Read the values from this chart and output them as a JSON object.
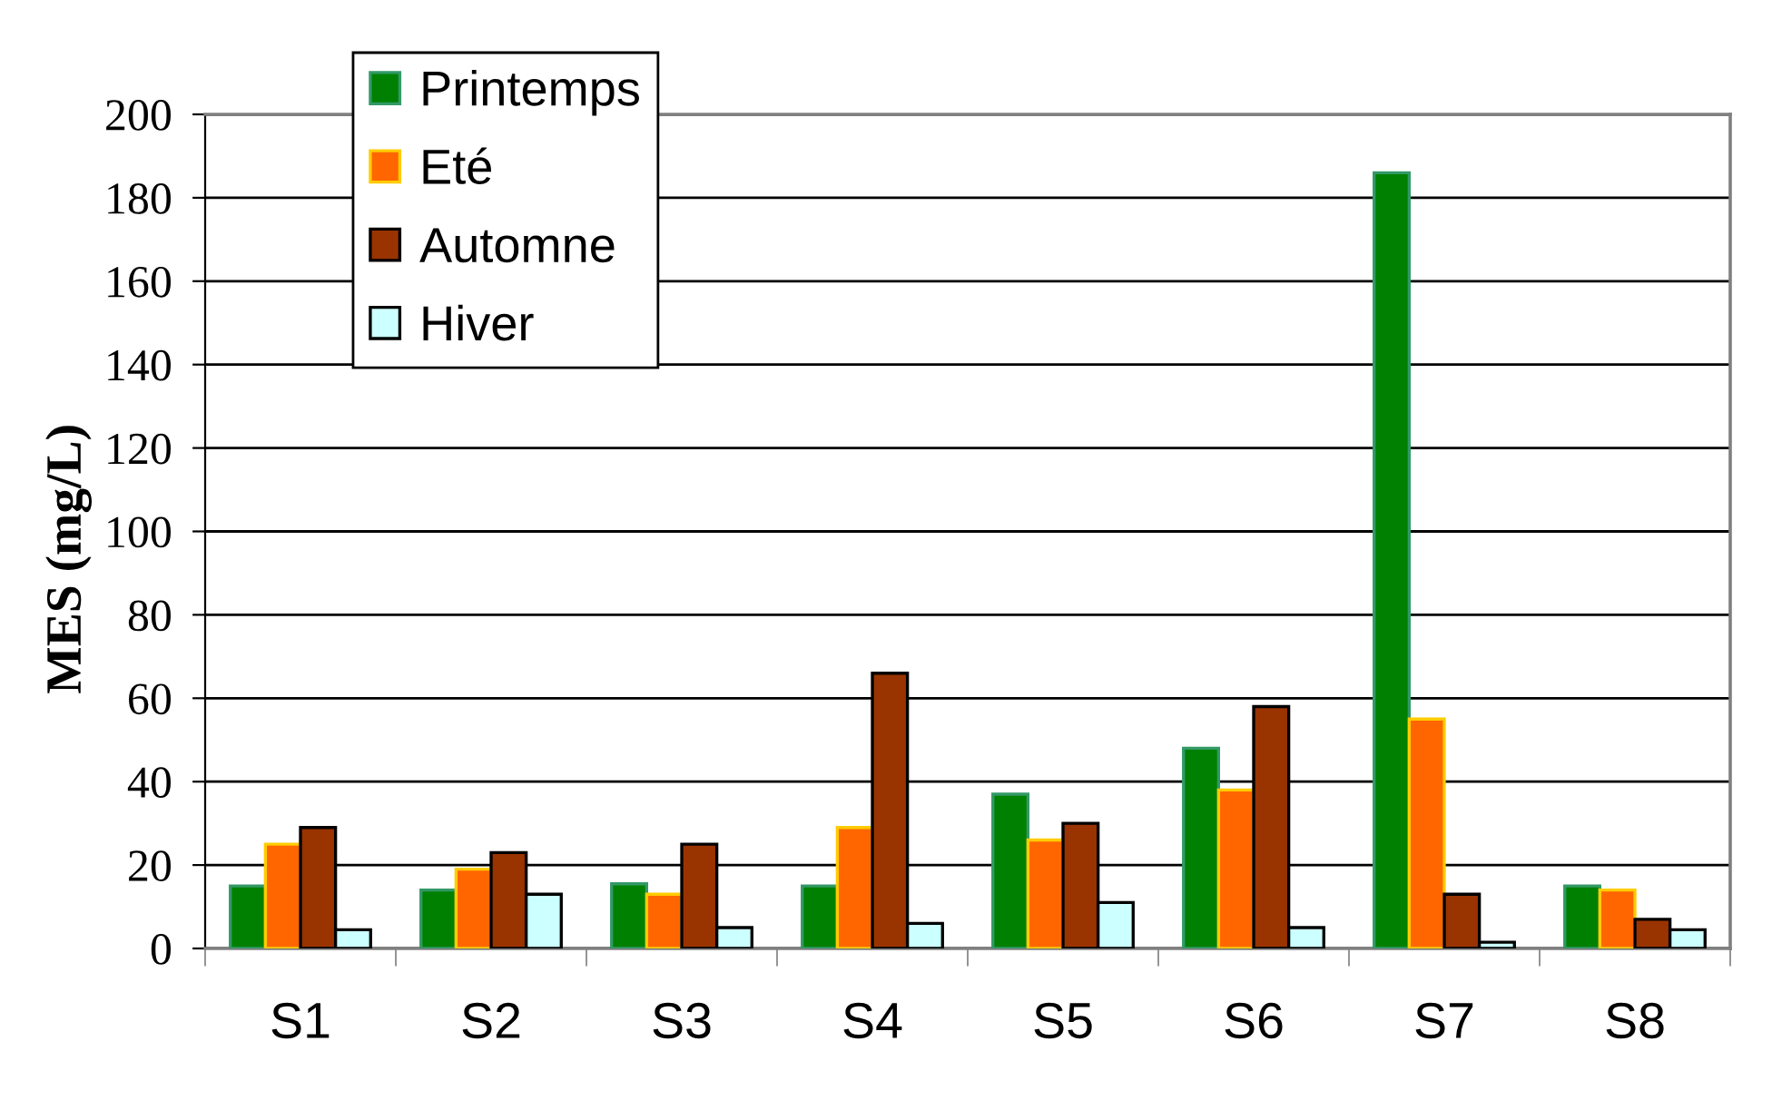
{
  "chart_data": {
    "type": "bar",
    "ylabel": "MES (mg/L)",
    "categories": [
      "S1",
      "S2",
      "S3",
      "S4",
      "S5",
      "S6",
      "S7",
      "S8"
    ],
    "series": [
      {
        "name": "Printemps",
        "color": "#008000",
        "values": [
          15,
          14,
          15.5,
          15,
          37,
          48,
          186,
          15
        ]
      },
      {
        "name": "Eté",
        "color": "#ff6600",
        "values": [
          25,
          19,
          13,
          29,
          26,
          38,
          55,
          14
        ]
      },
      {
        "name": "Automne",
        "color": "#993300",
        "values": [
          29,
          23,
          25,
          66,
          30,
          58,
          13,
          7
        ]
      },
      {
        "name": "Hiver",
        "color": "#ccffff",
        "values": [
          4.5,
          13,
          5,
          6,
          11,
          5,
          1.5,
          4.5
        ]
      }
    ],
    "ylim": [
      0,
      200
    ],
    "yticks": [
      0,
      20,
      40,
      60,
      80,
      100,
      120,
      140,
      160,
      180,
      200
    ],
    "grid": "y",
    "legend": "top left"
  }
}
